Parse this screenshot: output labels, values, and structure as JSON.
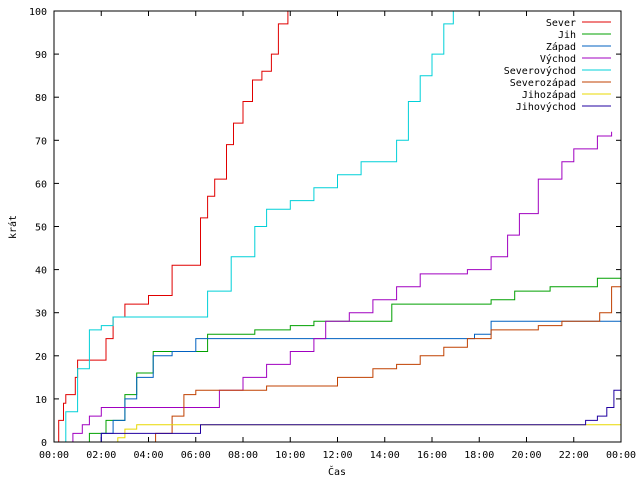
{
  "chart_data": {
    "type": "line",
    "title": "",
    "xlabel": "Čas",
    "ylabel": "krát",
    "xlim": [
      0,
      24
    ],
    "ylim": [
      0,
      100
    ],
    "grid": false,
    "legend": "top-right",
    "x_ticks": [
      {
        "value": 0,
        "label": "00:00"
      },
      {
        "value": 2,
        "label": "02:00"
      },
      {
        "value": 4,
        "label": "04:00"
      },
      {
        "value": 6,
        "label": "06:00"
      },
      {
        "value": 8,
        "label": "08:00"
      },
      {
        "value": 10,
        "label": "10:00"
      },
      {
        "value": 12,
        "label": "12:00"
      },
      {
        "value": 14,
        "label": "14:00"
      },
      {
        "value": 16,
        "label": "16:00"
      },
      {
        "value": 18,
        "label": "18:00"
      },
      {
        "value": 20,
        "label": "20:00"
      },
      {
        "value": 22,
        "label": "22:00"
      },
      {
        "value": 24,
        "label": "00:00"
      }
    ],
    "y_ticks": [
      0,
      10,
      20,
      30,
      40,
      50,
      60,
      70,
      80,
      90,
      100
    ],
    "series": [
      {
        "name": "Sever",
        "color": "#e00000",
        "x": [
          0,
          0.2,
          0.4,
          0.5,
          0.9,
          1.0,
          1.5,
          2.2,
          2.5,
          3.0,
          3.5,
          4.0,
          4.8,
          5.0,
          5.8,
          6.2,
          6.5,
          6.8,
          7.0,
          7.3,
          7.6,
          8.0,
          8.4,
          8.8,
          9.2,
          9.5,
          9.9
        ],
        "y": [
          0,
          5,
          9,
          11,
          15,
          19,
          19,
          24,
          29,
          32,
          32,
          34,
          34,
          41,
          41,
          52,
          57,
          61,
          61,
          69,
          74,
          79,
          84,
          86,
          90,
          97,
          100
        ]
      },
      {
        "name": "Jih",
        "color": "#00a000",
        "x": [
          0,
          1.5,
          2.2,
          3.0,
          3.5,
          4.2,
          5.2,
          6.5,
          8.5,
          10.0,
          11.0,
          12.5,
          13.5,
          14.3,
          15.5,
          17.0,
          18.5,
          19.5,
          21.0,
          22.5,
          23.0,
          24.0
        ],
        "y": [
          0,
          2,
          5,
          11,
          16,
          21,
          21,
          25,
          26,
          27,
          28,
          28,
          28,
          32,
          32,
          32,
          33,
          35,
          36,
          36,
          38,
          38
        ]
      },
      {
        "name": "Západ",
        "color": "#0060c0",
        "x": [
          0,
          2.0,
          2.5,
          3.0,
          3.5,
          4.2,
          5.0,
          6.0,
          8.0,
          10.0,
          12.0,
          14.0,
          16.0,
          17.8,
          18.5,
          20.0,
          22.0,
          24.0
        ],
        "y": [
          0,
          2,
          5,
          10,
          15,
          20,
          21,
          24,
          24,
          24,
          24,
          24,
          24,
          25,
          28,
          28,
          28,
          28
        ]
      },
      {
        "name": "Východ",
        "color": "#a000c0",
        "x": [
          0,
          0.8,
          1.2,
          1.5,
          2.0,
          3.0,
          4.0,
          5.0,
          6.5,
          7.0,
          8.0,
          9.0,
          10.0,
          11.0,
          11.5,
          12.5,
          13.5,
          14.5,
          15.5,
          17.5,
          18.5,
          19.2,
          19.7,
          20.5,
          21.5,
          22.0,
          22.5,
          23.0,
          23.6
        ],
        "y": [
          0,
          2,
          4,
          6,
          8,
          8,
          8,
          8,
          8,
          12,
          15,
          18,
          21,
          24,
          28,
          30,
          33,
          36,
          39,
          40,
          43,
          48,
          53,
          61,
          65,
          68,
          68,
          71,
          72
        ]
      },
      {
        "name": "Severovýchod",
        "color": "#00d0d8",
        "x": [
          0,
          0.5,
          1.0,
          1.5,
          2.0,
          2.5,
          3.0,
          4.0,
          5.0,
          6.0,
          6.5,
          7.5,
          8.5,
          9.0,
          10.0,
          11.0,
          12.0,
          12.5,
          13.0,
          14.0,
          14.5,
          15.0,
          15.5,
          16.0,
          16.5,
          16.9
        ],
        "y": [
          0,
          7,
          17,
          26,
          27,
          29,
          29,
          29,
          29,
          29,
          35,
          43,
          50,
          54,
          56,
          59,
          62,
          62,
          65,
          65,
          70,
          79,
          85,
          90,
          97,
          100
        ]
      },
      {
        "name": "Severozápad",
        "color": "#c04000",
        "x": [
          0,
          4.3,
          5.0,
          5.5,
          6.0,
          7.5,
          9.0,
          10.5,
          12.0,
          13.5,
          14.5,
          15.5,
          16.5,
          17.5,
          18.5,
          19.5,
          20.5,
          21.5,
          22.5,
          23.1,
          23.6,
          24.0
        ],
        "y": [
          0,
          2,
          6,
          11,
          12,
          12,
          13,
          13,
          15,
          17,
          18,
          20,
          22,
          24,
          26,
          26,
          27,
          28,
          28,
          30,
          36,
          36
        ]
      },
      {
        "name": "Jihozápad",
        "color": "#e8d800",
        "x": [
          0,
          2.7,
          3.0,
          3.5,
          4.0,
          5.0,
          10.0,
          15.0,
          20.0,
          24.0
        ],
        "y": [
          0,
          1,
          3,
          4,
          4,
          4,
          4,
          4,
          4,
          4
        ]
      },
      {
        "name": "Jihovýchod",
        "color": "#2000a0",
        "x": [
          0,
          2.0,
          4.0,
          6.0,
          6.2,
          10.0,
          14.0,
          18.0,
          22.5,
          23.0,
          23.4,
          23.7,
          24.0
        ],
        "y": [
          0,
          2,
          2,
          2,
          4,
          4,
          4,
          4,
          5,
          6,
          8,
          12,
          14
        ]
      }
    ]
  }
}
